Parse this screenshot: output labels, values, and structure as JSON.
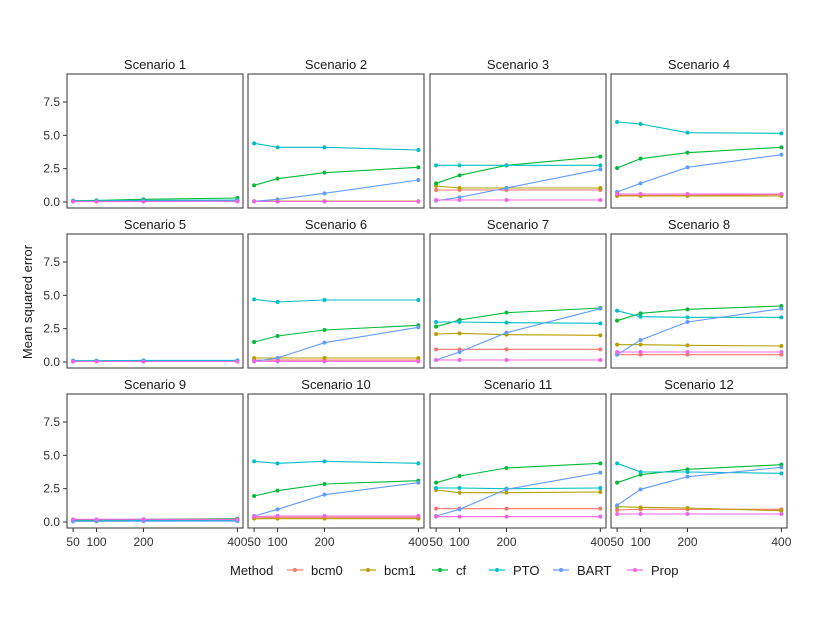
{
  "chart_data": {
    "type": "line",
    "ylabel": "Mean squared error",
    "xlabel": "",
    "x": [
      50,
      100,
      200,
      400
    ],
    "xlim": [
      37,
      412
    ],
    "ylim": [
      -0.45,
      9.6
    ],
    "x_ticks": [
      "50",
      "100",
      "200",
      "400"
    ],
    "y_ticks": [
      "0.0",
      "2.5",
      "5.0",
      "7.5"
    ],
    "y_tick_values": [
      0,
      2.5,
      5,
      7.5
    ],
    "legend_title": "Method",
    "legend_position": "bottom",
    "methods": [
      {
        "name": "bcm0",
        "color": "#F8766D"
      },
      {
        "name": "bcm1",
        "color": "#B79F00"
      },
      {
        "name": "cf",
        "color": "#00BA38"
      },
      {
        "name": "PTO",
        "color": "#00BFC4"
      },
      {
        "name": "BART",
        "color": "#619CFF"
      },
      {
        "name": "Prop",
        "color": "#F564E3"
      }
    ],
    "panels": [
      {
        "title": "Scenario 1",
        "series": [
          {
            "name": "bcm0",
            "values": [
              0.05,
              0.06,
              0.08,
              0.1
            ]
          },
          {
            "name": "bcm1",
            "values": [
              0.06,
              0.07,
              0.09,
              0.12
            ]
          },
          {
            "name": "cf",
            "values": [
              0.1,
              0.12,
              0.2,
              0.3
            ]
          },
          {
            "name": "PTO",
            "values": [
              0.08,
              0.09,
              0.12,
              0.15
            ]
          },
          {
            "name": "BART",
            "values": [
              0.05,
              0.05,
              0.06,
              0.07
            ]
          },
          {
            "name": "Prop",
            "values": [
              0.03,
              0.03,
              0.04,
              0.05
            ]
          }
        ]
      },
      {
        "title": "Scenario 2",
        "series": [
          {
            "name": "bcm0",
            "values": [
              0.05,
              0.05,
              0.05,
              0.05
            ]
          },
          {
            "name": "bcm1",
            "values": [
              0.06,
              0.06,
              0.06,
              0.06
            ]
          },
          {
            "name": "cf",
            "values": [
              1.25,
              1.75,
              2.2,
              2.6
            ]
          },
          {
            "name": "PTO",
            "values": [
              4.4,
              4.1,
              4.1,
              3.9
            ]
          },
          {
            "name": "BART",
            "values": [
              0.05,
              0.2,
              0.65,
              1.65
            ]
          },
          {
            "name": "Prop",
            "values": [
              0.04,
              0.04,
              0.04,
              0.04
            ]
          }
        ]
      },
      {
        "title": "Scenario 3",
        "series": [
          {
            "name": "bcm0",
            "values": [
              0.9,
              0.9,
              0.9,
              0.9
            ]
          },
          {
            "name": "bcm1",
            "values": [
              1.2,
              1.05,
              1.05,
              1.05
            ]
          },
          {
            "name": "cf",
            "values": [
              1.4,
              2.0,
              2.75,
              3.4
            ]
          },
          {
            "name": "PTO",
            "values": [
              2.75,
              2.75,
              2.75,
              2.75
            ]
          },
          {
            "name": "BART",
            "values": [
              0.1,
              0.35,
              1.05,
              2.45
            ]
          },
          {
            "name": "Prop",
            "values": [
              0.15,
              0.15,
              0.15,
              0.15
            ]
          }
        ]
      },
      {
        "title": "Scenario 4",
        "series": [
          {
            "name": "bcm0",
            "values": [
              0.5,
              0.5,
              0.5,
              0.55
            ]
          },
          {
            "name": "bcm1",
            "values": [
              0.45,
              0.45,
              0.45,
              0.45
            ]
          },
          {
            "name": "cf",
            "values": [
              2.55,
              3.25,
              3.7,
              4.1
            ]
          },
          {
            "name": "PTO",
            "values": [
              6.0,
              5.85,
              5.2,
              5.15
            ]
          },
          {
            "name": "BART",
            "values": [
              0.75,
              1.4,
              2.6,
              3.55
            ]
          },
          {
            "name": "Prop",
            "values": [
              0.6,
              0.6,
              0.6,
              0.6
            ]
          }
        ]
      },
      {
        "title": "Scenario 5",
        "series": [
          {
            "name": "bcm0",
            "values": [
              0.05,
              0.05,
              0.05,
              0.05
            ]
          },
          {
            "name": "bcm1",
            "values": [
              0.06,
              0.06,
              0.06,
              0.06
            ]
          },
          {
            "name": "cf",
            "values": [
              0.08,
              0.08,
              0.08,
              0.09
            ]
          },
          {
            "name": "PTO",
            "values": [
              0.1,
              0.1,
              0.12,
              0.12
            ]
          },
          {
            "name": "BART",
            "values": [
              0.05,
              0.05,
              0.05,
              0.05
            ]
          },
          {
            "name": "Prop",
            "values": [
              0.04,
              0.04,
              0.04,
              0.04
            ]
          }
        ]
      },
      {
        "title": "Scenario 6",
        "series": [
          {
            "name": "bcm0",
            "values": [
              0.15,
              0.15,
              0.15,
              0.15
            ]
          },
          {
            "name": "bcm1",
            "values": [
              0.3,
              0.3,
              0.3,
              0.3
            ]
          },
          {
            "name": "cf",
            "values": [
              1.5,
              1.95,
              2.4,
              2.75
            ]
          },
          {
            "name": "PTO",
            "values": [
              4.7,
              4.5,
              4.65,
              4.65
            ]
          },
          {
            "name": "BART",
            "values": [
              0.05,
              0.3,
              1.45,
              2.6
            ]
          },
          {
            "name": "Prop",
            "values": [
              0.05,
              0.05,
              0.05,
              0.05
            ]
          }
        ]
      },
      {
        "title": "Scenario 7",
        "series": [
          {
            "name": "bcm0",
            "values": [
              0.95,
              0.95,
              0.95,
              0.95
            ]
          },
          {
            "name": "bcm1",
            "values": [
              2.1,
              2.15,
              2.05,
              2.0
            ]
          },
          {
            "name": "cf",
            "values": [
              2.65,
              3.15,
              3.7,
              4.05
            ]
          },
          {
            "name": "PTO",
            "values": [
              3.0,
              3.0,
              2.95,
              2.9
            ]
          },
          {
            "name": "BART",
            "values": [
              0.15,
              0.75,
              2.2,
              4.0
            ]
          },
          {
            "name": "Prop",
            "values": [
              0.15,
              0.15,
              0.15,
              0.15
            ]
          }
        ]
      },
      {
        "title": "Scenario 8",
        "series": [
          {
            "name": "bcm0",
            "values": [
              0.55,
              0.55,
              0.55,
              0.55
            ]
          },
          {
            "name": "bcm1",
            "values": [
              1.3,
              1.3,
              1.25,
              1.2
            ]
          },
          {
            "name": "cf",
            "values": [
              3.1,
              3.65,
              3.95,
              4.2
            ]
          },
          {
            "name": "PTO",
            "values": [
              3.85,
              3.4,
              3.35,
              3.35
            ]
          },
          {
            "name": "BART",
            "values": [
              0.55,
              1.65,
              3.0,
              4.0
            ]
          },
          {
            "name": "Prop",
            "values": [
              0.75,
              0.75,
              0.75,
              0.75
            ]
          }
        ]
      },
      {
        "title": "Scenario 9",
        "series": [
          {
            "name": "bcm0",
            "values": [
              0.12,
              0.13,
              0.14,
              0.15
            ]
          },
          {
            "name": "bcm1",
            "values": [
              0.13,
              0.14,
              0.15,
              0.16
            ]
          },
          {
            "name": "cf",
            "values": [
              0.15,
              0.18,
              0.2,
              0.25
            ]
          },
          {
            "name": "PTO",
            "values": [
              0.1,
              0.1,
              0.12,
              0.12
            ]
          },
          {
            "name": "BART",
            "values": [
              0.05,
              0.05,
              0.06,
              0.07
            ]
          },
          {
            "name": "Prop",
            "values": [
              0.2,
              0.2,
              0.2,
              0.2
            ]
          }
        ]
      },
      {
        "title": "Scenario 10",
        "series": [
          {
            "name": "bcm0",
            "values": [
              0.3,
              0.35,
              0.35,
              0.35
            ]
          },
          {
            "name": "bcm1",
            "values": [
              0.25,
              0.25,
              0.25,
              0.25
            ]
          },
          {
            "name": "cf",
            "values": [
              1.95,
              2.35,
              2.85,
              3.1
            ]
          },
          {
            "name": "PTO",
            "values": [
              4.55,
              4.4,
              4.55,
              4.4
            ]
          },
          {
            "name": "BART",
            "values": [
              0.45,
              0.95,
              2.05,
              2.95
            ]
          },
          {
            "name": "Prop",
            "values": [
              0.4,
              0.45,
              0.45,
              0.45
            ]
          }
        ]
      },
      {
        "title": "Scenario 11",
        "series": [
          {
            "name": "bcm0",
            "values": [
              1.0,
              1.0,
              1.0,
              1.0
            ]
          },
          {
            "name": "bcm1",
            "values": [
              2.4,
              2.2,
              2.2,
              2.25
            ]
          },
          {
            "name": "cf",
            "values": [
              2.95,
              3.45,
              4.05,
              4.4
            ]
          },
          {
            "name": "PTO",
            "values": [
              2.55,
              2.55,
              2.5,
              2.55
            ]
          },
          {
            "name": "BART",
            "values": [
              0.45,
              0.95,
              2.45,
              3.7
            ]
          },
          {
            "name": "Prop",
            "values": [
              0.4,
              0.4,
              0.4,
              0.4
            ]
          }
        ]
      },
      {
        "title": "Scenario 12",
        "series": [
          {
            "name": "bcm0",
            "values": [
              0.9,
              0.95,
              0.95,
              0.95
            ]
          },
          {
            "name": "bcm1",
            "values": [
              1.15,
              1.1,
              1.05,
              0.85
            ]
          },
          {
            "name": "cf",
            "values": [
              2.95,
              3.55,
              3.95,
              4.3
            ]
          },
          {
            "name": "PTO",
            "values": [
              4.4,
              3.75,
              3.75,
              3.65
            ]
          },
          {
            "name": "BART",
            "values": [
              1.25,
              2.45,
              3.4,
              4.1
            ]
          },
          {
            "name": "Prop",
            "values": [
              0.6,
              0.6,
              0.6,
              0.6
            ]
          }
        ]
      }
    ]
  }
}
